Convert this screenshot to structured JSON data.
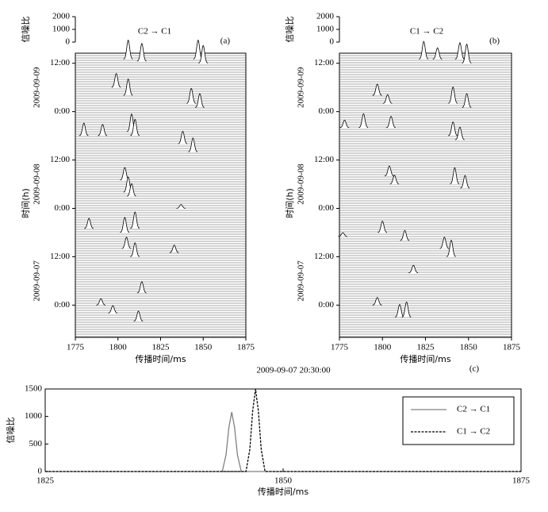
{
  "chart_data": [
    {
      "type": "waterfall",
      "title": "C2 → C1",
      "panel": "(a)",
      "xlabel": "传播时间/ms",
      "ylabel": "时间(h)",
      "snr_label": "信噪比",
      "xlim": [
        1775,
        1875
      ],
      "xticks": [
        1775,
        1800,
        1825,
        1850,
        1875
      ],
      "ylim": [
        -8,
        62.5
      ],
      "yticks": [
        {
          "value": 0,
          "label": "0:00"
        },
        {
          "value": 12,
          "label": "12:00"
        },
        {
          "value": 24,
          "label": "0:00"
        },
        {
          "value": 36,
          "label": "12:00"
        },
        {
          "value": 48,
          "label": "0:00"
        },
        {
          "value": 60,
          "label": "12:00"
        }
      ],
      "date_labels": [
        {
          "value": 6,
          "label": "2009-09-07"
        },
        {
          "value": 30,
          "label": "2009-09-08"
        },
        {
          "value": 54,
          "label": "2009-09-09"
        }
      ],
      "snrlim": [
        0,
        2000
      ],
      "snrticks": [
        0,
        1000,
        2000
      ],
      "peaks": {
        "x": [
          1806,
          1814,
          1847,
          1850,
          1799,
          1806,
          1843,
          1848,
          1780,
          1791,
          1808,
          1810,
          1838,
          1844,
          1804,
          1806,
          1808,
          1837,
          1783,
          1804,
          1810,
          1805,
          1810,
          1833,
          1790,
          1797,
          1814,
          1812
        ],
        "time": [
          61,
          60.5,
          61,
          60,
          54,
          52,
          50,
          49,
          42,
          42,
          43,
          42,
          40,
          38,
          31,
          28,
          27,
          24,
          19,
          18,
          19,
          14,
          12,
          13,
          0,
          -2,
          3,
          -4
        ],
        "snr": [
          1500,
          1400,
          1500,
          1400,
          1100,
          1300,
          1200,
          1100,
          1000,
          900,
          1400,
          1300,
          1000,
          1100,
          1000,
          1200,
          1000,
          300,
          800,
          1200,
          1300,
          900,
          1100,
          600,
          500,
          600,
          900,
          800
        ]
      }
    },
    {
      "type": "waterfall",
      "title": "C1 → C2",
      "panel": "(b)",
      "xlabel": "传播时间/ms",
      "ylabel": "时间(h)",
      "snr_label": "信噪比",
      "xlim": [
        1775,
        1875
      ],
      "xticks": [
        1775,
        1800,
        1825,
        1850,
        1875
      ],
      "ylim": [
        -8,
        62.5
      ],
      "yticks": [
        {
          "value": 0,
          "label": "0:00"
        },
        {
          "value": 12,
          "label": "12:00"
        },
        {
          "value": 24,
          "label": "0:00"
        },
        {
          "value": 36,
          "label": "12:00"
        },
        {
          "value": 48,
          "label": "0:00"
        },
        {
          "value": 60,
          "label": "12:00"
        }
      ],
      "date_labels": [
        {
          "value": 6,
          "label": "2009-09-07"
        },
        {
          "value": 30,
          "label": "2009-09-08"
        },
        {
          "value": 54,
          "label": "2009-09-09"
        }
      ],
      "snrlim": [
        0,
        2000
      ],
      "snrticks": [
        0,
        1000,
        2000
      ],
      "peaks": {
        "x": [
          1824,
          1832,
          1845,
          1849,
          1797,
          1803,
          1841,
          1849,
          1778,
          1789,
          1805,
          1841,
          1845,
          1804,
          1807,
          1842,
          1848,
          1777,
          1800,
          1813,
          1836,
          1840,
          1818,
          1797,
          1810,
          1814
        ],
        "time": [
          61,
          61,
          61,
          60,
          52,
          50,
          50,
          49,
          44,
          44,
          44,
          42,
          41,
          32,
          30,
          30,
          29,
          17,
          18,
          16,
          14,
          12,
          8,
          0,
          -3,
          -3
        ],
        "snr": [
          1400,
          900,
          1300,
          1500,
          900,
          700,
          1300,
          1100,
          600,
          1100,
          900,
          1100,
          1000,
          800,
          700,
          1300,
          1000,
          300,
          900,
          800,
          900,
          1300,
          600,
          600,
          1000,
          1200
        ]
      }
    },
    {
      "type": "line",
      "title": "2009-09-07 20:30:00",
      "panel": "(c)",
      "xlabel": "传播时间/ms",
      "ylabel": "信噪比",
      "xlim": [
        1825,
        1875
      ],
      "xticks": [
        1825,
        1850,
        1875
      ],
      "ylim": [
        0,
        1500
      ],
      "yticks": [
        0,
        500,
        1000,
        1500
      ],
      "series": [
        {
          "name": "C2 → C1",
          "color": "#808080",
          "dash": false,
          "x": [
            1825,
            1843.6,
            1844,
            1844.3,
            1844.6,
            1844.9,
            1845.2,
            1845.6,
            1875
          ],
          "values": [
            0,
            0,
            300,
            800,
            1080,
            800,
            300,
            0,
            0
          ]
        },
        {
          "name": "C1 → C2",
          "color": "#000000",
          "dash": true,
          "x": [
            1825,
            1846.1,
            1846.5,
            1846.8,
            1847.1,
            1847.4,
            1847.7,
            1848.1,
            1875
          ],
          "values": [
            0,
            0,
            400,
            1100,
            1500,
            1100,
            400,
            0,
            0
          ]
        }
      ]
    }
  ]
}
